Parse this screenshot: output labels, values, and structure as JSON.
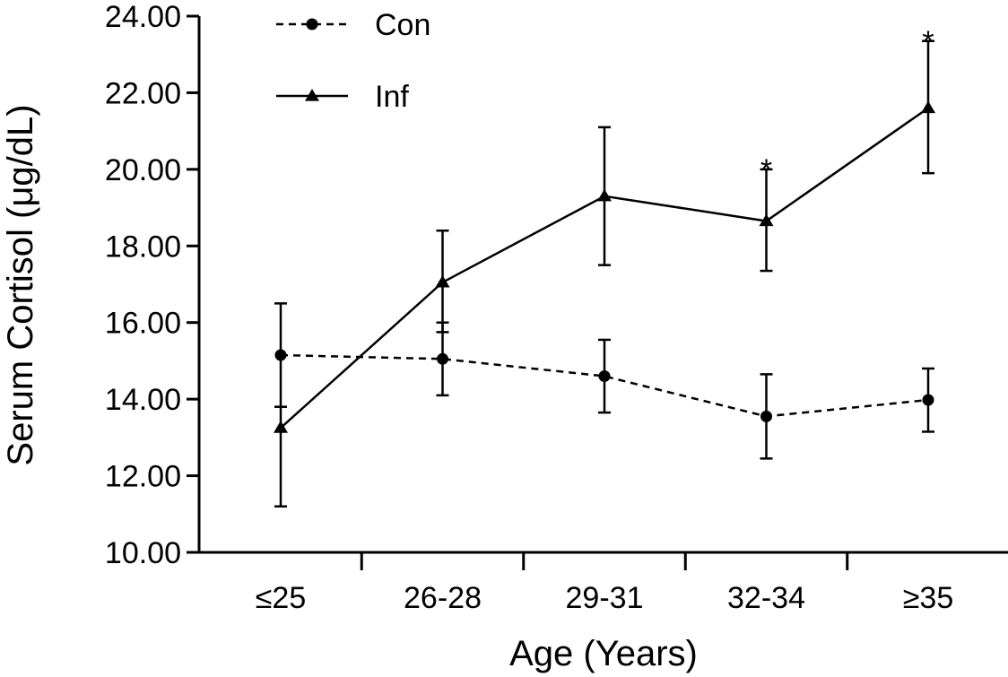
{
  "chart_data": {
    "type": "line",
    "title": "",
    "xlabel": "Age (Years)",
    "ylabel": "Serum Cortisol (μg/dL)",
    "categories": [
      "≤25",
      "26-28",
      "29-31",
      "32-34",
      "≥35"
    ],
    "ylim": [
      10,
      24
    ],
    "yticks": [
      "10.00",
      "12.00",
      "14.00",
      "16.00",
      "18.00",
      "20.00",
      "22.00",
      "24.00"
    ],
    "series": [
      {
        "name": "Con",
        "line_style": "dashed",
        "marker": "circle",
        "values": [
          15.15,
          15.05,
          14.6,
          13.55,
          13.98
        ],
        "error_low": [
          13.8,
          14.1,
          13.65,
          12.45,
          13.15
        ],
        "error_high": [
          16.5,
          16.0,
          15.55,
          14.65,
          14.8
        ]
      },
      {
        "name": "Inf",
        "line_style": "solid",
        "marker": "triangle",
        "values": [
          13.25,
          17.05,
          19.3,
          18.65,
          21.6
        ],
        "error_low": [
          11.2,
          15.75,
          17.5,
          17.35,
          19.9
        ],
        "error_high": [
          13.8,
          18.4,
          21.1,
          20.0,
          23.35
        ]
      }
    ],
    "annotations": [
      {
        "category": "32-34",
        "text": "*"
      },
      {
        "category": "≥35",
        "text": "*"
      }
    ],
    "legend": {
      "position": "top-left",
      "entries": [
        "Con",
        "Inf"
      ]
    }
  }
}
